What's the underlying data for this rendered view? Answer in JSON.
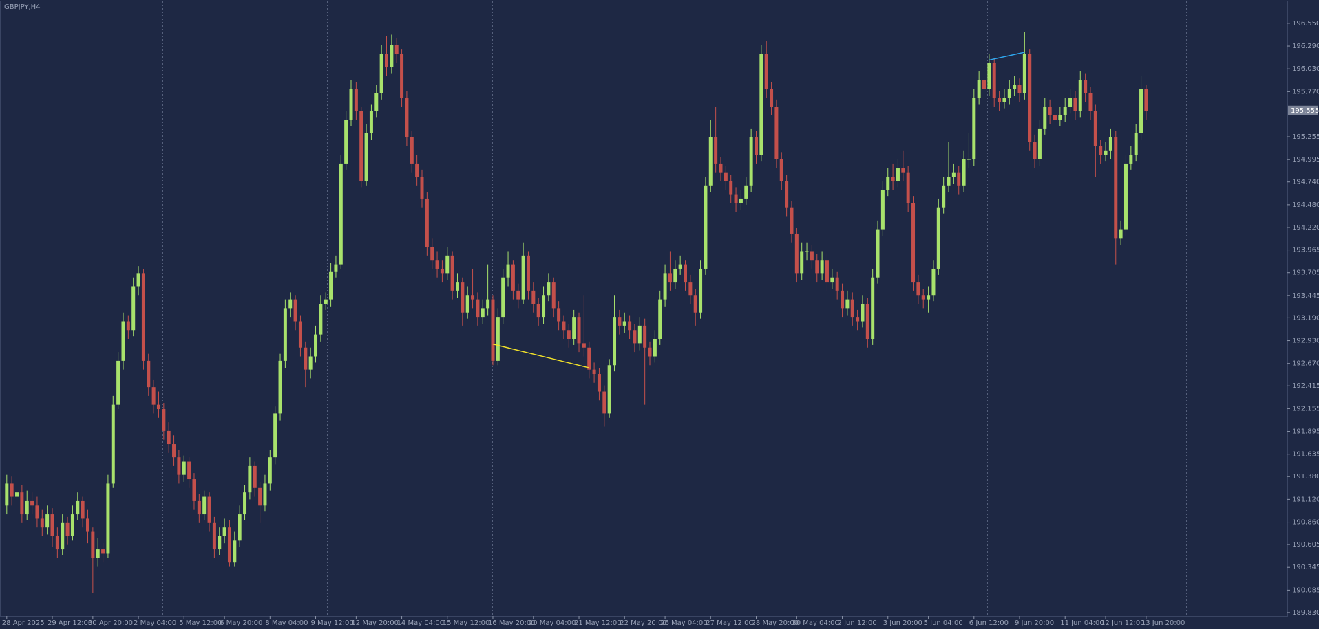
{
  "chart_data": {
    "type": "candlestick",
    "title": "GBPJPY,H4",
    "up_color": "#a8e26c",
    "down_color": "#c4504b",
    "grid": true,
    "ylim": [
      189.79,
      196.8
    ],
    "yticks": [
      {
        "value": 196.55,
        "label": "196.550"
      },
      {
        "value": 196.29,
        "label": "196.290"
      },
      {
        "value": 196.03,
        "label": "196.030"
      },
      {
        "value": 195.77,
        "label": "195.770"
      },
      195.255,
      194.995,
      {
        "value": 194.74,
        "label": "194.740"
      },
      {
        "value": 194.48,
        "label": "194.480"
      },
      {
        "value": 194.22,
        "label": "194.220"
      },
      193.965,
      193.705,
      193.445,
      {
        "value": 193.19,
        "label": "193.190"
      },
      {
        "value": 192.93,
        "label": "192.930"
      },
      {
        "value": 192.67,
        "label": "192.670"
      },
      192.415,
      192.155,
      191.895,
      191.635,
      {
        "value": 191.38,
        "label": "191.380"
      },
      {
        "value": 191.12,
        "label": "191.120"
      },
      {
        "value": 190.86,
        "label": "190.860"
      },
      190.605,
      190.345,
      190.085,
      {
        "value": 189.83,
        "label": "189.830"
      }
    ],
    "current_price": 195.555,
    "categories": [
      "28 Apr 2025",
      null,
      null,
      null,
      null,
      null,
      null,
      null,
      null,
      "29 Apr 12:00",
      null,
      null,
      null,
      null,
      null,
      null,
      null,
      "30 Apr 20:00",
      null,
      null,
      null,
      null,
      null,
      null,
      null,
      null,
      "2 May 04:00",
      null,
      null,
      null,
      null,
      null,
      null,
      null,
      null,
      "5 May 12:00",
      null,
      null,
      null,
      null,
      null,
      null,
      null,
      "6 May 20:00",
      null,
      null,
      null,
      null,
      null,
      null,
      null,
      null,
      "8 May 04:00",
      null,
      null,
      null,
      null,
      null,
      null,
      null,
      null,
      "9 May 12:00",
      null,
      null,
      null,
      null,
      null,
      null,
      null,
      "12 May 20:00",
      null,
      null,
      null,
      null,
      null,
      null,
      null,
      null,
      "14 May 04:00",
      null,
      null,
      null,
      null,
      null,
      null,
      null,
      null,
      "15 May 12:00",
      null,
      null,
      null,
      null,
      null,
      null,
      null,
      null,
      "16 May 20:00",
      null,
      null,
      null,
      null,
      null,
      null,
      null,
      "20 May 04:00",
      null,
      null,
      null,
      null,
      null,
      null,
      null,
      null,
      "21 May 12:00",
      null,
      null,
      null,
      null,
      null,
      null,
      null,
      null,
      "22 May 20:00",
      null,
      null,
      null,
      null,
      null,
      null,
      null,
      "26 May 04:00",
      null,
      null,
      null,
      null,
      null,
      null,
      null,
      null,
      "27 May 12:00",
      null,
      null,
      null,
      null,
      null,
      null,
      null,
      null,
      "28 May 20:00",
      null,
      null,
      null,
      null,
      null,
      null,
      null,
      "30 May 04:00",
      null,
      null,
      null,
      null,
      null,
      null,
      null,
      null,
      "2 Jun 12:00",
      null,
      null,
      null,
      null,
      null,
      null,
      null,
      null,
      "3 Jun 20:00",
      null,
      null,
      null,
      null,
      null,
      null,
      null,
      "5 Jun 04:00",
      null,
      null,
      null,
      null,
      null,
      null,
      null,
      null,
      "6 Jun 12:00",
      null,
      null,
      null,
      null,
      null,
      null,
      null,
      null,
      "9 Jun 20:00",
      null,
      null,
      null,
      null,
      null,
      null,
      null,
      null,
      "11 Jun 04:00",
      null,
      null,
      null,
      null,
      null,
      null,
      null,
      "12 Jun 12:00",
      null,
      null,
      null,
      null,
      null,
      null,
      null,
      "13 Jun 20:00"
    ],
    "open": [
      191.05,
      191.3,
      191.15,
      191.2,
      190.95,
      191.1,
      191.05,
      190.9,
      190.8,
      190.95,
      190.7,
      190.55,
      190.85,
      190.7,
      190.95,
      191.1,
      190.9,
      190.75,
      190.45,
      190.55,
      190.5,
      191.3,
      192.2,
      192.7,
      193.15,
      193.05,
      193.55,
      193.7,
      192.7,
      192.4,
      192.2,
      192.15,
      191.9,
      191.75,
      191.6,
      191.4,
      191.55,
      191.35,
      191.1,
      190.95,
      191.15,
      190.85,
      190.55,
      190.7,
      190.8,
      190.4,
      190.65,
      190.95,
      191.2,
      191.5,
      191.25,
      191.05,
      191.3,
      191.6,
      192.1,
      192.7,
      193.3,
      193.4,
      193.15,
      192.85,
      192.6,
      192.75,
      193.0,
      193.35,
      193.4,
      193.72,
      193.8,
      194.95,
      195.45,
      195.8,
      195.55,
      194.75,
      195.3,
      195.55,
      195.75,
      196.2,
      196.05,
      196.3,
      196.2,
      195.7,
      195.25,
      194.95,
      194.8,
      194.55,
      194.0,
      193.85,
      193.75,
      193.7,
      193.9,
      193.5,
      193.6,
      193.25,
      193.45,
      193.4,
      193.2,
      193.3,
      193.4,
      192.7,
      193.2,
      193.65,
      193.8,
      193.5,
      193.4,
      193.9,
      193.5,
      193.35,
      193.2,
      193.45,
      193.6,
      193.3,
      193.15,
      193.05,
      192.95,
      193.2,
      192.9,
      192.85,
      192.6,
      192.55,
      192.35,
      192.1,
      192.65,
      193.2,
      193.1,
      193.15,
      193.05,
      192.9,
      193.1,
      192.85,
      192.75,
      192.95,
      193.4,
      193.7,
      193.6,
      193.75,
      193.8,
      193.6,
      193.45,
      193.25,
      193.75,
      194.7,
      195.25,
      194.95,
      194.85,
      194.75,
      194.6,
      194.5,
      194.55,
      194.7,
      195.25,
      195.05,
      196.2,
      195.8,
      195.6,
      195.0,
      194.75,
      194.45,
      194.15,
      193.7,
      193.95,
      193.95,
      193.85,
      193.7,
      193.85,
      193.6,
      193.65,
      193.5,
      193.3,
      193.4,
      193.2,
      193.15,
      193.35,
      192.95,
      193.65,
      194.2,
      194.65,
      194.8,
      194.75,
      194.9,
      194.85,
      194.5,
      193.6,
      193.45,
      193.4,
      193.45,
      193.75,
      194.45,
      194.7,
      194.8,
      194.85,
      194.7,
      195.0,
      195.0,
      195.7,
      195.9,
      195.8,
      196.1,
      195.7,
      195.65,
      195.7,
      195.8,
      195.85,
      195.75,
      196.2,
      195.2,
      195.0,
      195.35,
      195.6,
      195.5,
      195.45,
      195.5,
      195.6,
      195.7,
      195.55,
      195.9,
      195.75,
      195.55,
      195.15,
      195.05,
      195.1,
      195.25,
      194.1,
      194.2,
      194.95,
      195.05,
      195.3,
      195.8
    ],
    "high": [
      191.4,
      191.38,
      191.32,
      191.28,
      191.22,
      191.2,
      191.15,
      191.0,
      191.05,
      191.02,
      190.8,
      190.95,
      190.92,
      191.05,
      191.2,
      191.15,
      191.0,
      190.8,
      190.68,
      190.62,
      191.4,
      192.3,
      192.8,
      193.25,
      193.22,
      193.65,
      193.78,
      193.75,
      192.78,
      192.48,
      192.35,
      192.22,
      192.0,
      191.85,
      191.68,
      191.62,
      191.6,
      191.42,
      191.18,
      191.22,
      191.2,
      190.92,
      190.8,
      190.9,
      190.88,
      190.75,
      191.05,
      191.28,
      191.6,
      191.55,
      191.32,
      191.4,
      191.68,
      192.18,
      192.78,
      193.4,
      193.48,
      193.45,
      193.22,
      192.92,
      192.85,
      193.1,
      193.45,
      193.48,
      193.82,
      193.9,
      195.05,
      195.55,
      195.9,
      195.88,
      195.6,
      195.4,
      195.62,
      195.85,
      196.3,
      196.4,
      196.42,
      196.38,
      196.25,
      195.78,
      195.32,
      195.05,
      194.88,
      194.62,
      194.1,
      193.95,
      193.85,
      194.0,
      193.95,
      193.7,
      193.65,
      193.55,
      193.75,
      193.48,
      193.4,
      193.8,
      193.45,
      193.3,
      193.75,
      193.95,
      193.85,
      193.58,
      194.05,
      193.95,
      193.6,
      193.42,
      193.55,
      193.7,
      193.65,
      193.38,
      193.22,
      193.12,
      193.28,
      193.25,
      193.45,
      192.92,
      192.68,
      192.62,
      192.42,
      192.72,
      193.45,
      193.28,
      193.25,
      193.22,
      193.12,
      193.2,
      193.18,
      192.92,
      193.05,
      193.5,
      193.8,
      193.95,
      193.85,
      193.9,
      193.85,
      193.68,
      193.52,
      193.85,
      194.8,
      195.45,
      195.6,
      195.02,
      194.92,
      194.82,
      194.68,
      194.65,
      194.8,
      195.35,
      195.32,
      196.3,
      196.35,
      195.88,
      195.68,
      195.08,
      194.82,
      194.52,
      194.22,
      194.05,
      194.05,
      194.02,
      193.92,
      193.95,
      193.92,
      193.75,
      193.72,
      193.58,
      193.5,
      193.48,
      193.28,
      193.45,
      193.42,
      193.75,
      194.3,
      194.75,
      194.9,
      194.95,
      195.0,
      195.1,
      194.92,
      194.58,
      193.68,
      193.52,
      193.55,
      193.85,
      194.55,
      194.8,
      195.2,
      194.95,
      194.92,
      195.1,
      195.3,
      195.8,
      196.0,
      195.98,
      196.2,
      196.15,
      195.78,
      195.8,
      195.9,
      195.95,
      195.92,
      196.45,
      196.25,
      195.28,
      195.45,
      195.7,
      195.68,
      195.58,
      195.6,
      195.7,
      195.8,
      195.78,
      196.0,
      195.98,
      195.82,
      195.62,
      195.22,
      195.2,
      195.35,
      195.32,
      194.3,
      195.05,
      195.15,
      195.4,
      195.95,
      195.85
    ],
    "low": [
      190.95,
      191.05,
      191.02,
      190.85,
      190.88,
      190.95,
      190.8,
      190.7,
      190.72,
      190.58,
      190.45,
      190.48,
      190.6,
      190.65,
      190.88,
      190.8,
      190.62,
      190.05,
      190.35,
      190.4,
      190.45,
      191.25,
      192.15,
      192.6,
      192.95,
      192.98,
      193.45,
      192.6,
      192.3,
      192.1,
      192.05,
      191.8,
      191.65,
      191.5,
      191.3,
      191.32,
      191.25,
      191.0,
      190.85,
      190.88,
      190.75,
      190.45,
      190.48,
      190.62,
      190.35,
      190.35,
      190.58,
      190.88,
      191.12,
      191.15,
      190.85,
      190.98,
      191.22,
      191.52,
      192.02,
      192.62,
      193.2,
      193.05,
      192.75,
      192.4,
      192.5,
      192.68,
      192.92,
      193.28,
      193.32,
      193.65,
      193.75,
      194.88,
      195.38,
      195.45,
      194.68,
      194.7,
      195.22,
      195.48,
      195.68,
      195.95,
      195.98,
      196.1,
      195.6,
      195.15,
      194.85,
      194.7,
      194.45,
      193.9,
      193.75,
      193.65,
      193.6,
      193.62,
      193.4,
      193.42,
      193.1,
      193.18,
      193.3,
      193.1,
      193.12,
      193.22,
      192.65,
      192.65,
      193.12,
      193.55,
      193.4,
      193.3,
      193.35,
      193.4,
      193.25,
      193.1,
      193.12,
      193.38,
      193.2,
      193.05,
      192.95,
      192.85,
      192.88,
      192.8,
      192.75,
      192.5,
      192.45,
      192.25,
      191.95,
      192.05,
      192.58,
      193.0,
      193.02,
      192.95,
      192.8,
      192.82,
      192.2,
      192.65,
      192.68,
      192.88,
      193.32,
      193.5,
      193.52,
      193.68,
      193.5,
      193.35,
      193.1,
      193.18,
      193.68,
      194.62,
      194.85,
      194.75,
      194.65,
      194.5,
      194.4,
      194.42,
      194.48,
      194.62,
      194.95,
      194.98,
      195.7,
      195.5,
      194.9,
      194.65,
      194.35,
      194.05,
      193.6,
      193.62,
      193.85,
      193.75,
      193.6,
      193.62,
      193.5,
      193.52,
      193.4,
      193.2,
      193.22,
      193.1,
      193.05,
      193.08,
      192.85,
      192.88,
      193.58,
      194.12,
      194.58,
      194.65,
      194.68,
      194.75,
      194.4,
      193.5,
      193.35,
      193.3,
      193.25,
      193.38,
      193.68,
      194.38,
      194.62,
      194.72,
      194.6,
      194.62,
      194.9,
      194.92,
      195.62,
      195.7,
      195.72,
      195.6,
      195.55,
      195.58,
      195.62,
      195.72,
      195.65,
      195.68,
      195.1,
      194.9,
      194.92,
      195.28,
      195.4,
      195.35,
      195.38,
      195.42,
      195.52,
      195.45,
      195.48,
      195.65,
      195.45,
      194.8,
      194.95,
      194.98,
      195.0,
      193.8,
      194.02,
      194.12,
      194.88,
      194.98,
      195.22,
      195.45
    ],
    "close": [
      191.3,
      191.15,
      191.2,
      190.95,
      191.1,
      191.05,
      190.9,
      190.8,
      190.95,
      190.7,
      190.55,
      190.85,
      190.7,
      190.95,
      191.1,
      190.9,
      190.75,
      190.45,
      190.55,
      190.5,
      191.3,
      192.2,
      192.7,
      193.15,
      193.05,
      193.55,
      193.7,
      192.7,
      192.4,
      192.2,
      192.15,
      191.9,
      191.75,
      191.6,
      191.4,
      191.55,
      191.35,
      191.1,
      190.95,
      191.15,
      190.85,
      190.55,
      190.7,
      190.8,
      190.4,
      190.65,
      190.95,
      191.2,
      191.5,
      191.25,
      191.05,
      191.3,
      191.6,
      192.1,
      192.7,
      193.3,
      193.4,
      193.15,
      192.85,
      192.6,
      192.75,
      193.0,
      193.35,
      193.4,
      193.72,
      193.8,
      194.95,
      195.45,
      195.8,
      195.55,
      194.75,
      195.3,
      195.55,
      195.75,
      196.2,
      196.05,
      196.3,
      196.2,
      195.7,
      195.25,
      194.95,
      194.8,
      194.55,
      194.0,
      193.85,
      193.75,
      193.7,
      193.9,
      193.5,
      193.6,
      193.25,
      193.45,
      193.4,
      193.2,
      193.3,
      193.4,
      192.7,
      193.2,
      193.65,
      193.8,
      193.5,
      193.4,
      193.9,
      193.5,
      193.35,
      193.2,
      193.45,
      193.6,
      193.3,
      193.15,
      193.05,
      192.95,
      193.2,
      192.9,
      192.85,
      192.6,
      192.55,
      192.35,
      192.1,
      192.65,
      193.2,
      193.1,
      193.15,
      193.05,
      192.9,
      193.1,
      192.85,
      192.75,
      192.95,
      193.4,
      193.7,
      193.6,
      193.75,
      193.8,
      193.6,
      193.45,
      193.25,
      193.75,
      194.7,
      195.25,
      194.95,
      194.85,
      194.75,
      194.6,
      194.5,
      194.55,
      194.7,
      195.25,
      195.05,
      196.2,
      195.8,
      195.6,
      195.0,
      194.75,
      194.45,
      194.15,
      193.7,
      193.95,
      193.95,
      193.85,
      193.7,
      193.85,
      193.6,
      193.65,
      193.5,
      193.3,
      193.4,
      193.2,
      193.15,
      193.35,
      192.95,
      193.65,
      194.2,
      194.65,
      194.8,
      194.75,
      194.9,
      194.85,
      194.5,
      193.6,
      193.45,
      193.4,
      193.45,
      193.75,
      194.45,
      194.7,
      194.8,
      194.85,
      194.7,
      195.0,
      195.0,
      195.7,
      195.9,
      195.8,
      196.1,
      195.7,
      195.65,
      195.7,
      195.8,
      195.85,
      195.75,
      196.2,
      195.2,
      195.0,
      195.35,
      195.6,
      195.5,
      195.45,
      195.5,
      195.6,
      195.7,
      195.55,
      195.9,
      195.75,
      195.55,
      195.15,
      195.05,
      195.1,
      195.25,
      194.1,
      194.2,
      194.95,
      195.05,
      195.3,
      195.8,
      195.55
    ],
    "trendlines": [
      {
        "color": "#f2e22a",
        "x": [
          96,
          115
        ],
        "y": [
          192.89,
          192.62
        ]
      },
      {
        "color": "#2fa8f0",
        "x": [
          194,
          201
        ],
        "y": [
          196.13,
          196.22
        ]
      }
    ]
  }
}
